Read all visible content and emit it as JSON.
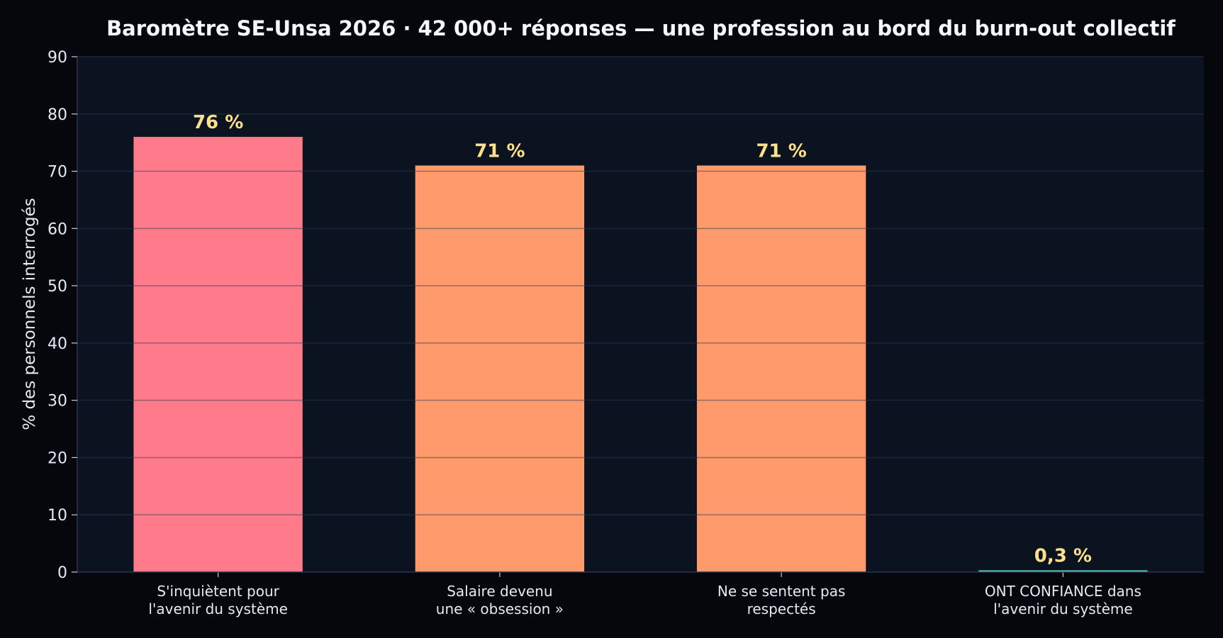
{
  "chart_data": {
    "type": "bar",
    "title": "Baromètre SE-Unsa 2026 · 42 000+ réponses — une profession au bord du burn-out collectif",
    "xlabel": "",
    "ylabel": "% des personnels interrogés",
    "ylim": [
      0,
      90
    ],
    "yticks": [
      0,
      10,
      20,
      30,
      40,
      50,
      60,
      70,
      80,
      90
    ],
    "grid": true,
    "categories": [
      [
        "S'inquiètent pour",
        "l'avenir du système"
      ],
      [
        "Salaire devenu",
        "une « obsession »"
      ],
      [
        "Ne se sentent pas",
        "respectés"
      ],
      [
        "ONT CONFIANCE dans",
        "l'avenir du système"
      ]
    ],
    "values": [
      76,
      71,
      71,
      0.3
    ],
    "value_labels": [
      "76 %",
      "71 %",
      "71 %",
      "0,3 %"
    ],
    "bar_colors": [
      "#ff7a8a",
      "#ff9a6c",
      "#ff9a6c",
      "#5dd6c0"
    ],
    "colors": {
      "page_background": "#05070c",
      "plot_background": "#0c1320",
      "grid": "#1a2536",
      "value_label": "#ffe08a",
      "text": "#e6eaf0"
    }
  }
}
